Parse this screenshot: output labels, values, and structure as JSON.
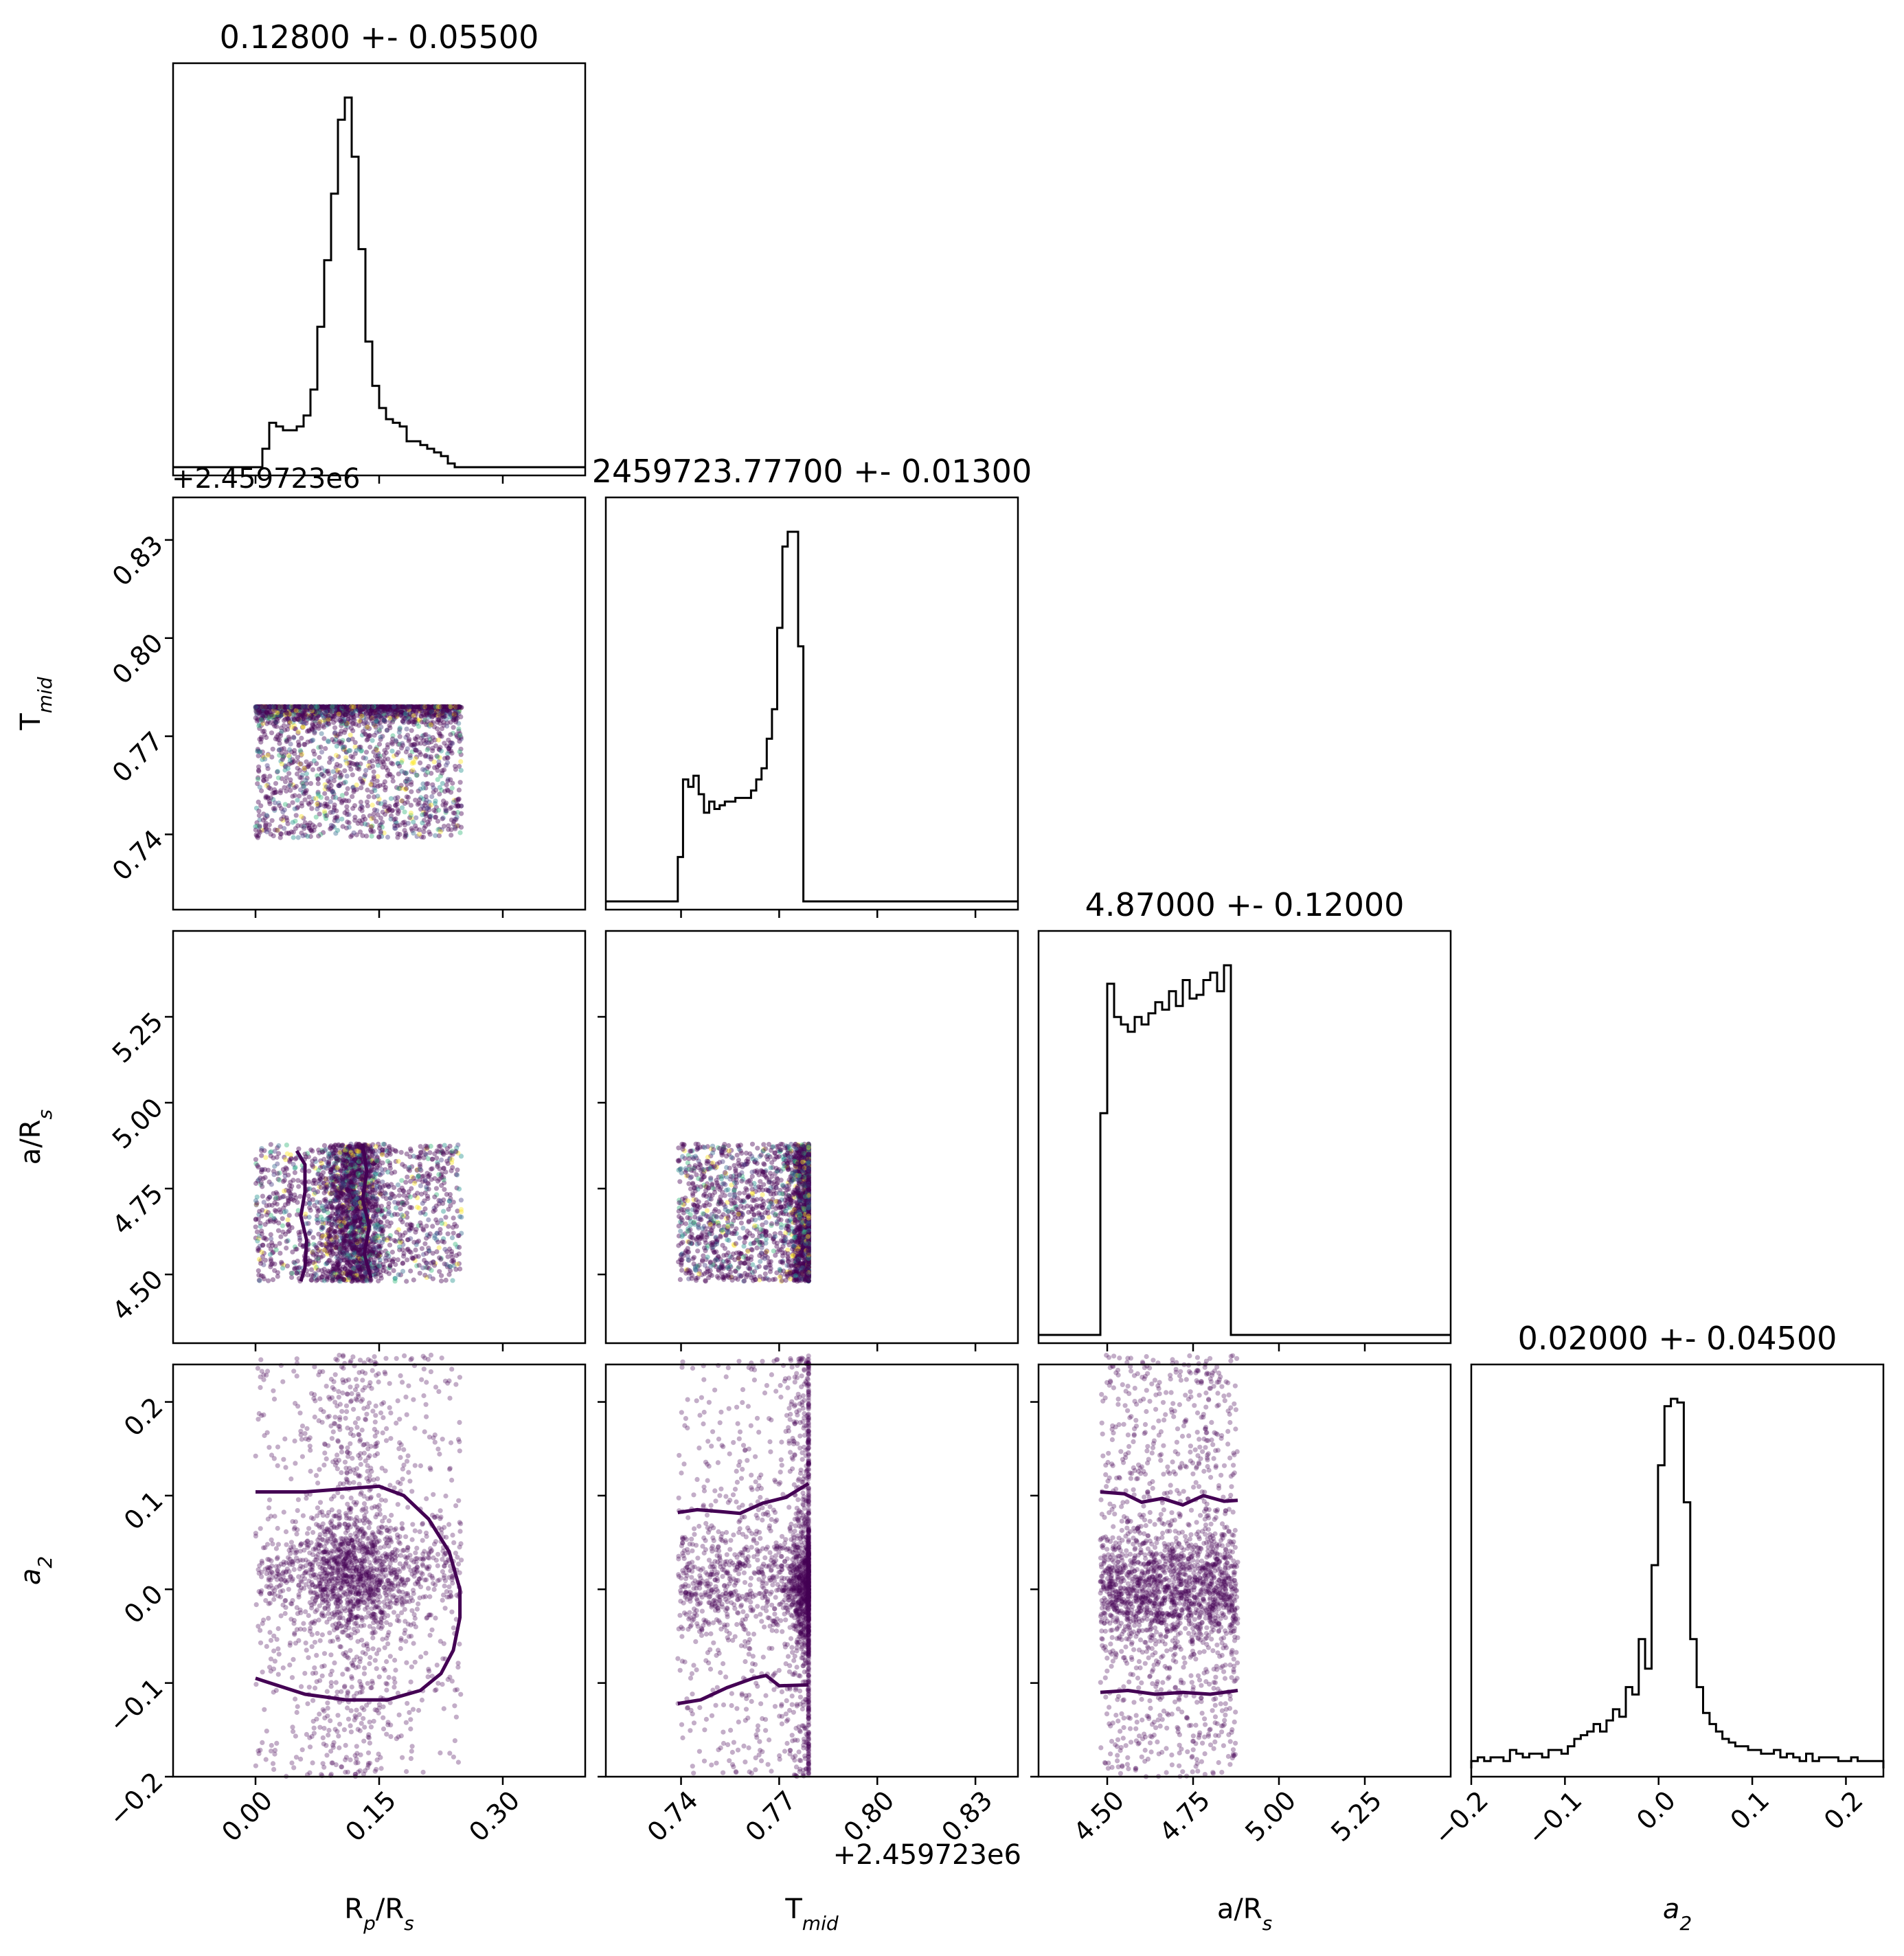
{
  "figure": {
    "offset_text_rows": "+2.459723e6",
    "offset_text_cols": "+2.459723e6"
  },
  "colors": {
    "points": "#440154",
    "points_alt": [
      "#31688e",
      "#35b779",
      "#fde725",
      "#443983",
      "#21918c"
    ],
    "contour": "#440154",
    "hist": "#000000",
    "axes": "#000000"
  },
  "chart_data": {
    "type": "corner",
    "parameters": [
      {
        "key": "rp",
        "label": "R_p/R_s",
        "label_main": "R",
        "label_sub": "p",
        "label_tail": "/R",
        "label_tail_sub": "s",
        "title": "0.12800 +- 0.05500",
        "range": [
          -0.1,
          0.4
        ],
        "ticks": [
          0.0,
          0.15,
          0.3
        ],
        "tick_labels": [
          "0.00",
          "0.15",
          "0.30"
        ],
        "hist_range": [
          0.0,
          0.25
        ],
        "hist_bins": 30,
        "hist": [
          0,
          0.05,
          0.12,
          0.11,
          0.1,
          0.1,
          0.11,
          0.14,
          0.21,
          0.38,
          0.56,
          0.74,
          0.94,
          1.0,
          0.84,
          0.59,
          0.34,
          0.22,
          0.16,
          0.13,
          0.12,
          0.11,
          0.07,
          0.07,
          0.06,
          0.05,
          0.04,
          0.03,
          0.01,
          0.0
        ]
      },
      {
        "key": "tmid",
        "label": "T_mid",
        "label_main": "T",
        "label_sub": "mid",
        "label_tail": "",
        "label_tail_sub": "",
        "title": "2459723.77700 +- 0.01300",
        "range": [
          0.717,
          0.843
        ],
        "ticks": [
          0.74,
          0.77,
          0.8,
          0.83
        ],
        "tick_labels": [
          "0.74",
          "0.77",
          "0.80",
          "0.83"
        ],
        "hist_range": [
          0.739,
          0.779
        ],
        "hist_bins": 25,
        "hist": [
          0.12,
          0.33,
          0.31,
          0.34,
          0.29,
          0.24,
          0.27,
          0.25,
          0.26,
          0.27,
          0.27,
          0.28,
          0.28,
          0.28,
          0.3,
          0.33,
          0.36,
          0.44,
          0.52,
          0.74,
          0.96,
          1.0,
          1.0,
          0.69,
          0.0
        ]
      },
      {
        "key": "ars",
        "label": "a/R_s",
        "label_main": "a/R",
        "label_sub": "s",
        "label_tail": "",
        "label_tail_sub": "",
        "title": "4.87000 +- 0.12000",
        "range": [
          4.3,
          5.5
        ],
        "ticks": [
          4.5,
          4.75,
          5.0,
          5.25
        ],
        "tick_labels": [
          "4.50",
          "4.75",
          "5.00",
          "5.25"
        ],
        "hist_range": [
          4.48,
          4.88
        ],
        "hist_bins": 20,
        "hist": [
          0.6,
          0.95,
          0.86,
          0.84,
          0.82,
          0.86,
          0.84,
          0.87,
          0.9,
          0.88,
          0.93,
          0.89,
          0.96,
          0.91,
          0.92,
          0.96,
          0.98,
          0.93,
          1.0,
          0.0
        ]
      },
      {
        "key": "a2",
        "label": "a_2",
        "label_main": "a",
        "label_sub": "2",
        "label_tail": "",
        "label_tail_sub": "",
        "title": "0.02000 +- 0.04500",
        "range": [
          -0.2,
          0.24
        ],
        "ticks": [
          -0.2,
          -0.1,
          0.0,
          0.1,
          0.2
        ],
        "tick_labels": [
          "−0.2",
          "−0.1",
          "0.0",
          "0.1",
          "0.2"
        ],
        "hist_range": [
          -0.2,
          0.24
        ],
        "hist_bins": 64,
        "hist": [
          0.02,
          0.03,
          0.02,
          0.03,
          0.03,
          0.02,
          0.05,
          0.04,
          0.03,
          0.04,
          0.04,
          0.03,
          0.05,
          0.05,
          0.04,
          0.06,
          0.08,
          0.09,
          0.1,
          0.12,
          0.1,
          0.13,
          0.16,
          0.14,
          0.22,
          0.2,
          0.35,
          0.27,
          0.55,
          0.82,
          0.98,
          1.0,
          0.99,
          0.72,
          0.35,
          0.22,
          0.15,
          0.12,
          0.1,
          0.08,
          0.07,
          0.06,
          0.06,
          0.05,
          0.05,
          0.04,
          0.04,
          0.05,
          0.03,
          0.04,
          0.03,
          0.02,
          0.04,
          0.02,
          0.03,
          0.03,
          0.03,
          0.02,
          0.02,
          0.03,
          0.02,
          0.02,
          0.02,
          0.02
        ]
      }
    ],
    "scatter": [
      {
        "row": 1,
        "col": 0,
        "x_range": [
          0.0,
          0.25
        ],
        "y_range": [
          0.739,
          0.779
        ],
        "y_peak": [
          0.779,
          0.0025
        ],
        "n": 2600,
        "contours": []
      },
      {
        "row": 2,
        "col": 0,
        "x_range": [
          0.0,
          0.25
        ],
        "y_range": [
          4.48,
          4.88
        ],
        "x_peak": [
          0.12,
          0.018
        ],
        "n": 2600,
        "contours": [
          [
            [
              0.05,
              4.86
            ],
            [
              0.06,
              4.82
            ],
            [
              0.06,
              4.74
            ],
            [
              0.055,
              4.67
            ],
            [
              0.062,
              4.6
            ],
            [
              0.06,
              4.52
            ],
            [
              0.055,
              4.48
            ]
          ],
          [
            [
              0.13,
              4.88
            ],
            [
              0.135,
              4.8
            ],
            [
              0.13,
              4.72
            ],
            [
              0.138,
              4.64
            ],
            [
              0.132,
              4.56
            ],
            [
              0.14,
              4.49
            ]
          ]
        ]
      },
      {
        "row": 2,
        "col": 1,
        "x_range": [
          0.739,
          0.779
        ],
        "y_range": [
          4.48,
          4.88
        ],
        "x_peak": [
          0.779,
          0.003
        ],
        "n": 2600,
        "contours": []
      },
      {
        "row": 3,
        "col": 0,
        "x_range": [
          0.0,
          0.25
        ],
        "y_range": [
          -0.2,
          0.25
        ],
        "x_peak": [
          0.12,
          0.03
        ],
        "y_peak": [
          0.015,
          0.03
        ],
        "n": 2200,
        "contours": [
          [
            [
              0.0,
              0.104
            ],
            [
              0.06,
              0.104
            ],
            [
              0.12,
              0.108
            ],
            [
              0.15,
              0.11
            ],
            [
              0.18,
              0.1
            ],
            [
              0.21,
              0.075
            ],
            [
              0.235,
              0.04
            ],
            [
              0.248,
              0.0
            ],
            [
              0.248,
              -0.03
            ],
            [
              0.24,
              -0.065
            ],
            [
              0.225,
              -0.09
            ],
            [
              0.2,
              -0.108
            ],
            [
              0.16,
              -0.118
            ],
            [
              0.11,
              -0.118
            ],
            [
              0.06,
              -0.112
            ],
            [
              0.0,
              -0.095
            ]
          ]
        ]
      },
      {
        "row": 3,
        "col": 1,
        "x_range": [
          0.739,
          0.779
        ],
        "y_range": [
          -0.2,
          0.25
        ],
        "x_peak": [
          0.779,
          0.003
        ],
        "y_peak": [
          0.005,
          0.03
        ],
        "n": 2200,
        "contours": [
          [
            [
              0.739,
              0.082
            ],
            [
              0.745,
              0.085
            ],
            [
              0.752,
              0.083
            ],
            [
              0.758,
              0.081
            ],
            [
              0.765,
              0.092
            ],
            [
              0.772,
              0.098
            ],
            [
              0.779,
              0.113
            ]
          ],
          [
            [
              0.739,
              -0.122
            ],
            [
              0.746,
              -0.118
            ],
            [
              0.754,
              -0.105
            ],
            [
              0.762,
              -0.095
            ],
            [
              0.766,
              -0.092
            ],
            [
              0.77,
              -0.103
            ],
            [
              0.779,
              -0.102
            ]
          ]
        ]
      },
      {
        "row": 3,
        "col": 2,
        "x_range": [
          4.48,
          4.88
        ],
        "y_range": [
          -0.2,
          0.25
        ],
        "y_peak": [
          0.0,
          0.03
        ],
        "n": 2200,
        "contours": [
          [
            [
              4.48,
              0.104
            ],
            [
              4.55,
              0.102
            ],
            [
              4.6,
              0.093
            ],
            [
              4.66,
              0.097
            ],
            [
              4.72,
              0.09
            ],
            [
              4.78,
              0.1
            ],
            [
              4.84,
              0.094
            ],
            [
              4.88,
              0.095
            ]
          ],
          [
            [
              4.48,
              -0.11
            ],
            [
              4.56,
              -0.108
            ],
            [
              4.64,
              -0.112
            ],
            [
              4.72,
              -0.11
            ],
            [
              4.8,
              -0.112
            ],
            [
              4.88,
              -0.108
            ]
          ]
        ]
      }
    ]
  }
}
